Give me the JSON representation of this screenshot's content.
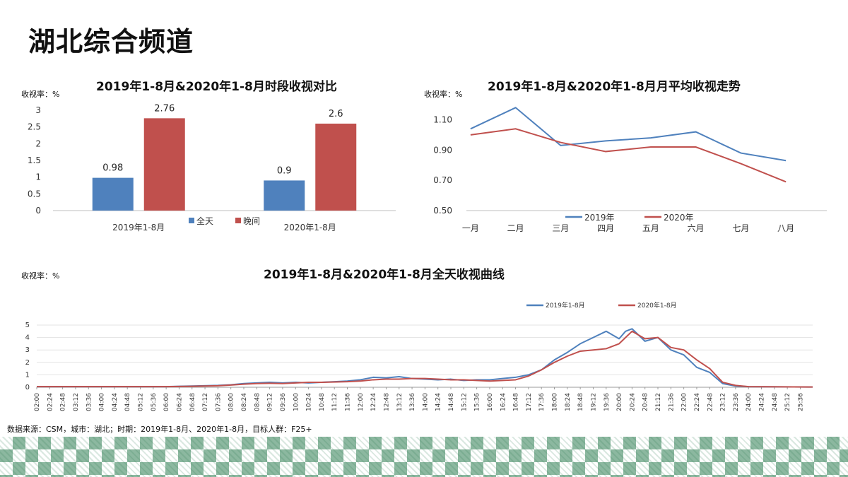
{
  "page": {
    "title": "湖北综合频道",
    "source": "数据来源：CSM，城市：湖北；时期：2019年1-8月、2020年1-8月，目标人群：F25+"
  },
  "colors": {
    "s2019": "#4f81bd",
    "s2020": "#c0504d",
    "axis": "#bfbfbf"
  },
  "chart_data": [
    {
      "type": "bar",
      "title": "2019年1-8月&2020年1-8月时段收视对比",
      "unit_label": "收视率：%",
      "categories": [
        "2019年1-8月",
        "2020年1-8月"
      ],
      "series": [
        {
          "name": "全天",
          "values": [
            0.98,
            0.9
          ]
        },
        {
          "name": "晚间",
          "values": [
            2.76,
            2.6
          ]
        }
      ],
      "value_labels": [
        "0.98",
        "2.76",
        "0.9",
        "2.6"
      ],
      "ylim": [
        0,
        3
      ],
      "yticks": [
        "0",
        "0.5",
        "1",
        "1.5",
        "2",
        "2.5",
        "3"
      ],
      "legend": "bottom",
      "grid": false
    },
    {
      "type": "line",
      "title": "2019年1-8月&2020年1-8月月平均收视走势",
      "unit_label": "收视率：%",
      "categories": [
        "一月",
        "二月",
        "三月",
        "四月",
        "五月",
        "六月",
        "七月",
        "八月"
      ],
      "series": [
        {
          "name": "2019年",
          "values": [
            1.04,
            1.18,
            0.93,
            0.96,
            0.98,
            1.02,
            0.88,
            0.83
          ]
        },
        {
          "name": "2020年",
          "values": [
            1.0,
            1.04,
            0.95,
            0.89,
            0.92,
            0.92,
            0.81,
            0.69
          ]
        }
      ],
      "ylim": [
        0.5,
        1.2
      ],
      "yticks": [
        "0.50",
        "0.70",
        "0.90",
        "1.10"
      ],
      "legend": "bottom",
      "grid": false
    },
    {
      "type": "line",
      "title": "2019年1-8月&2020年1-8月全天收视曲线",
      "unit_label": "收视率：%",
      "x_range": [
        "02:00",
        "25:59"
      ],
      "xticks": [
        "02:00",
        "02:24",
        "02:48",
        "03:12",
        "03:36",
        "04:00",
        "04:24",
        "04:48",
        "05:12",
        "05:36",
        "06:00",
        "06:24",
        "06:48",
        "07:12",
        "07:36",
        "08:00",
        "08:24",
        "08:48",
        "09:12",
        "09:36",
        "10:00",
        "10:24",
        "10:48",
        "11:12",
        "11:36",
        "12:00",
        "12:24",
        "12:48",
        "13:12",
        "13:36",
        "14:00",
        "14:24",
        "14:48",
        "15:12",
        "15:36",
        "16:00",
        "16:24",
        "16:48",
        "17:12",
        "17:36",
        "18:00",
        "18:24",
        "18:48",
        "19:12",
        "19:36",
        "20:00",
        "20:24",
        "20:48",
        "21:12",
        "21:36",
        "22:00",
        "22:24",
        "22:48",
        "23:12",
        "23:36",
        "24:00",
        "24:24",
        "24:48",
        "25:12",
        "25:36"
      ],
      "series": [
        {
          "name": "2019年1-8月",
          "x": [
            "02:00",
            "06:00",
            "06:48",
            "07:36",
            "08:00",
            "08:24",
            "08:48",
            "09:12",
            "09:36",
            "10:00",
            "10:24",
            "10:48",
            "11:36",
            "12:00",
            "12:24",
            "12:48",
            "13:12",
            "13:36",
            "14:00",
            "14:24",
            "14:48",
            "15:12",
            "15:36",
            "16:00",
            "16:24",
            "16:48",
            "17:12",
            "17:36",
            "18:00",
            "18:24",
            "18:48",
            "19:12",
            "19:36",
            "20:00",
            "20:12",
            "20:24",
            "20:48",
            "21:12",
            "21:36",
            "22:00",
            "22:24",
            "22:48",
            "23:12",
            "23:36",
            "24:00",
            "25:59"
          ],
          "values": [
            0.05,
            0.05,
            0.1,
            0.15,
            0.2,
            0.3,
            0.35,
            0.4,
            0.35,
            0.4,
            0.35,
            0.4,
            0.5,
            0.6,
            0.8,
            0.75,
            0.85,
            0.7,
            0.65,
            0.6,
            0.65,
            0.55,
            0.6,
            0.6,
            0.7,
            0.8,
            1.0,
            1.4,
            2.2,
            2.8,
            3.5,
            4.0,
            4.5,
            3.9,
            4.5,
            4.7,
            3.7,
            4.0,
            3.0,
            2.6,
            1.6,
            1.2,
            0.3,
            0.1,
            0.05,
            0.02
          ]
        },
        {
          "name": "2020年1-8月",
          "x": [
            "02:00",
            "06:00",
            "06:48",
            "07:36",
            "08:00",
            "08:24",
            "08:48",
            "09:12",
            "09:36",
            "10:00",
            "10:24",
            "10:48",
            "11:36",
            "12:00",
            "12:24",
            "12:48",
            "13:12",
            "13:36",
            "14:00",
            "14:24",
            "14:48",
            "15:12",
            "15:36",
            "16:00",
            "16:24",
            "16:48",
            "17:12",
            "17:36",
            "18:00",
            "18:24",
            "18:48",
            "19:12",
            "19:36",
            "20:00",
            "20:24",
            "20:48",
            "21:12",
            "21:36",
            "22:00",
            "22:24",
            "22:48",
            "23:12",
            "23:36",
            "24:00",
            "25:59"
          ],
          "values": [
            0.05,
            0.05,
            0.08,
            0.12,
            0.18,
            0.25,
            0.3,
            0.32,
            0.3,
            0.35,
            0.4,
            0.4,
            0.45,
            0.5,
            0.6,
            0.65,
            0.65,
            0.7,
            0.7,
            0.65,
            0.6,
            0.6,
            0.55,
            0.5,
            0.55,
            0.6,
            0.9,
            1.4,
            2.0,
            2.5,
            2.9,
            3.0,
            3.1,
            3.5,
            4.5,
            3.9,
            4.0,
            3.2,
            3.0,
            2.2,
            1.5,
            0.4,
            0.15,
            0.05,
            0.02
          ]
        }
      ],
      "ylim": [
        0,
        5
      ],
      "yticks": [
        "0",
        "1",
        "2",
        "3",
        "4",
        "5"
      ],
      "legend": "top-right",
      "grid": true
    }
  ]
}
